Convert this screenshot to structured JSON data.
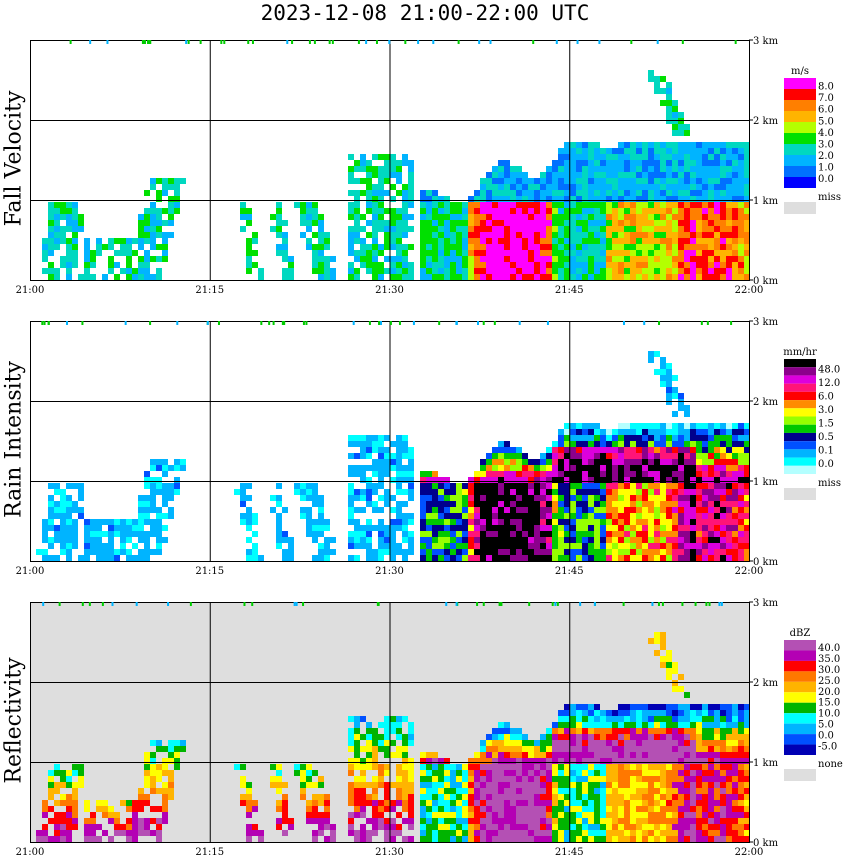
{
  "title": "2023-12-08  21:00-22:00 UTC",
  "time_ticks": [
    "21:00",
    "21:15",
    "21:30",
    "21:45",
    "22:00"
  ],
  "height_ticks": [
    "0 km",
    "1 km",
    "2 km",
    "3 km"
  ],
  "missing_color": "#dedede",
  "chart_data": [
    {
      "type": "heatmap",
      "panel": "fall_velocity",
      "ylabel": "Fall Velocity",
      "xlabel": "",
      "x_range": [
        "21:00",
        "22:00"
      ],
      "y_range_km": [
        0,
        3
      ],
      "colorbar": {
        "unit": "m/s",
        "labels": [
          "8.0",
          "7.0",
          "6.0",
          "5.0",
          "4.0",
          "3.0",
          "2.0",
          "1.0",
          "0.0"
        ],
        "colors": [
          "#ff00ff",
          "#ff0000",
          "#ff7f00",
          "#ffb400",
          "#b4ff00",
          "#00e000",
          "#00d8c0",
          "#00b4ff",
          "#0070ff",
          "#0000ff"
        ],
        "missing_label": "miss"
      },
      "background": "#ffffff"
    },
    {
      "type": "heatmap",
      "panel": "rain_intensity",
      "ylabel": "Rain Intensity",
      "xlabel": "",
      "x_range": [
        "21:00",
        "22:00"
      ],
      "y_range_km": [
        0,
        3
      ],
      "colorbar": {
        "unit": "mm/hr",
        "labels": [
          "48.0",
          "12.0",
          "6.0",
          "3.0",
          "1.5",
          "0.5",
          "0.1",
          "0.0"
        ],
        "colors": [
          "#000000",
          "#8c008c",
          "#dc00dc",
          "#ff1478",
          "#ff0000",
          "#ff8c00",
          "#ffff00",
          "#96ff00",
          "#00c800",
          "#00008c",
          "#0050ff",
          "#00b4ff",
          "#00ffff",
          "#b4ffff"
        ],
        "missing_label": "miss"
      },
      "background": "#ffffff"
    },
    {
      "type": "heatmap",
      "panel": "reflectivity",
      "ylabel": "Reflectivity",
      "xlabel": "",
      "x_range": [
        "21:00",
        "22:00"
      ],
      "y_range_km": [
        0,
        3
      ],
      "colorbar": {
        "unit": "dBZ",
        "labels": [
          "40.0",
          "35.0",
          "30.0",
          "25.0",
          "20.0",
          "15.0",
          "10.0",
          "5.0",
          "0.0",
          "-5.0"
        ],
        "colors": [
          "#b450b4",
          "#b400b4",
          "#ff0000",
          "#ff7800",
          "#ffb400",
          "#ffff00",
          "#00b400",
          "#00ffff",
          "#00b4ff",
          "#0050ff",
          "#0000b4"
        ],
        "missing_label": "none"
      },
      "background": "#dedede"
    }
  ]
}
